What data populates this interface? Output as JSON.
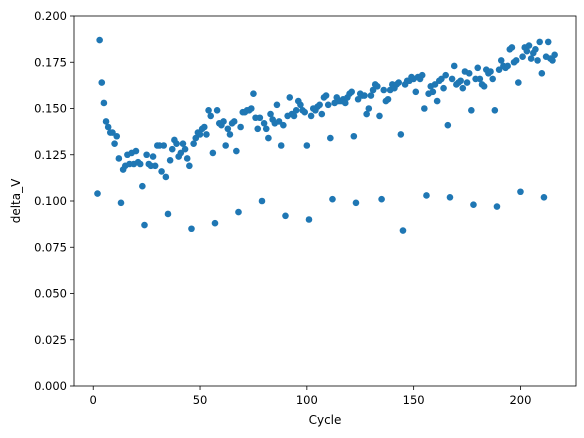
{
  "chart_data": {
    "type": "scatter",
    "xlabel": "Cycle",
    "ylabel": "delta_V",
    "xlim": [
      -9,
      226
    ],
    "ylim": [
      0.0,
      0.2
    ],
    "x_ticks": [
      0,
      50,
      100,
      150,
      200
    ],
    "x_tick_labels": [
      "0",
      "50",
      "100",
      "150",
      "200"
    ],
    "y_ticks": [
      0.0,
      0.025,
      0.05,
      0.075,
      0.1,
      0.125,
      0.15,
      0.175,
      0.2
    ],
    "y_tick_labels": [
      "0.000",
      "0.025",
      "0.050",
      "0.075",
      "0.100",
      "0.125",
      "0.150",
      "0.175",
      "0.200"
    ],
    "grid": false,
    "marker_color": "#1f77b4",
    "points": [
      [
        2,
        0.104
      ],
      [
        3,
        0.187
      ],
      [
        4,
        0.164
      ],
      [
        5,
        0.153
      ],
      [
        6,
        0.143
      ],
      [
        7,
        0.14
      ],
      [
        8,
        0.137
      ],
      [
        9,
        0.137
      ],
      [
        10,
        0.131
      ],
      [
        11,
        0.135
      ],
      [
        12,
        0.123
      ],
      [
        13,
        0.099
      ],
      [
        14,
        0.117
      ],
      [
        15,
        0.119
      ],
      [
        16,
        0.125
      ],
      [
        17,
        0.12
      ],
      [
        18,
        0.126
      ],
      [
        19,
        0.12
      ],
      [
        20,
        0.127
      ],
      [
        21,
        0.121
      ],
      [
        22,
        0.12
      ],
      [
        23,
        0.108
      ],
      [
        24,
        0.087
      ],
      [
        25,
        0.125
      ],
      [
        26,
        0.12
      ],
      [
        27,
        0.119
      ],
      [
        28,
        0.124
      ],
      [
        29,
        0.119
      ],
      [
        30,
        0.13
      ],
      [
        31,
        0.13
      ],
      [
        32,
        0.116
      ],
      [
        33,
        0.13
      ],
      [
        34,
        0.113
      ],
      [
        35,
        0.093
      ],
      [
        36,
        0.122
      ],
      [
        37,
        0.128
      ],
      [
        38,
        0.133
      ],
      [
        39,
        0.131
      ],
      [
        40,
        0.124
      ],
      [
        41,
        0.126
      ],
      [
        42,
        0.131
      ],
      [
        43,
        0.128
      ],
      [
        44,
        0.123
      ],
      [
        45,
        0.119
      ],
      [
        46,
        0.085
      ],
      [
        47,
        0.131
      ],
      [
        48,
        0.134
      ],
      [
        49,
        0.137
      ],
      [
        50,
        0.136
      ],
      [
        51,
        0.139
      ],
      [
        52,
        0.14
      ],
      [
        53,
        0.136
      ],
      [
        54,
        0.149
      ],
      [
        55,
        0.146
      ],
      [
        56,
        0.126
      ],
      [
        57,
        0.088
      ],
      [
        58,
        0.149
      ],
      [
        59,
        0.142
      ],
      [
        60,
        0.141
      ],
      [
        61,
        0.143
      ],
      [
        62,
        0.13
      ],
      [
        63,
        0.139
      ],
      [
        64,
        0.136
      ],
      [
        65,
        0.142
      ],
      [
        66,
        0.143
      ],
      [
        67,
        0.127
      ],
      [
        68,
        0.094
      ],
      [
        69,
        0.14
      ],
      [
        70,
        0.148
      ],
      [
        71,
        0.148
      ],
      [
        72,
        0.149
      ],
      [
        73,
        0.149
      ],
      [
        74,
        0.15
      ],
      [
        75,
        0.158
      ],
      [
        76,
        0.145
      ],
      [
        77,
        0.139
      ],
      [
        78,
        0.145
      ],
      [
        79,
        0.1
      ],
      [
        80,
        0.142
      ],
      [
        81,
        0.139
      ],
      [
        82,
        0.134
      ],
      [
        83,
        0.147
      ],
      [
        84,
        0.144
      ],
      [
        85,
        0.142
      ],
      [
        86,
        0.152
      ],
      [
        87,
        0.143
      ],
      [
        88,
        0.13
      ],
      [
        89,
        0.141
      ],
      [
        90,
        0.092
      ],
      [
        91,
        0.146
      ],
      [
        92,
        0.156
      ],
      [
        93,
        0.147
      ],
      [
        94,
        0.146
      ],
      [
        95,
        0.149
      ],
      [
        96,
        0.154
      ],
      [
        97,
        0.152
      ],
      [
        98,
        0.149
      ],
      [
        99,
        0.148
      ],
      [
        100,
        0.13
      ],
      [
        101,
        0.09
      ],
      [
        102,
        0.146
      ],
      [
        103,
        0.15
      ],
      [
        104,
        0.149
      ],
      [
        105,
        0.151
      ],
      [
        106,
        0.152
      ],
      [
        107,
        0.147
      ],
      [
        108,
        0.156
      ],
      [
        109,
        0.157
      ],
      [
        110,
        0.152
      ],
      [
        111,
        0.134
      ],
      [
        112,
        0.101
      ],
      [
        113,
        0.153
      ],
      [
        114,
        0.156
      ],
      [
        115,
        0.154
      ],
      [
        116,
        0.154
      ],
      [
        117,
        0.155
      ],
      [
        118,
        0.153
      ],
      [
        119,
        0.156
      ],
      [
        120,
        0.158
      ],
      [
        121,
        0.159
      ],
      [
        122,
        0.135
      ],
      [
        123,
        0.099
      ],
      [
        124,
        0.155
      ],
      [
        125,
        0.158
      ],
      [
        126,
        0.157
      ],
      [
        127,
        0.157
      ],
      [
        128,
        0.147
      ],
      [
        129,
        0.15
      ],
      [
        130,
        0.157
      ],
      [
        131,
        0.16
      ],
      [
        132,
        0.163
      ],
      [
        133,
        0.162
      ],
      [
        134,
        0.146
      ],
      [
        135,
        0.101
      ],
      [
        136,
        0.16
      ],
      [
        137,
        0.154
      ],
      [
        138,
        0.155
      ],
      [
        139,
        0.16
      ],
      [
        140,
        0.163
      ],
      [
        141,
        0.161
      ],
      [
        142,
        0.163
      ],
      [
        143,
        0.164
      ],
      [
        144,
        0.136
      ],
      [
        145,
        0.084
      ],
      [
        146,
        0.163
      ],
      [
        147,
        0.165
      ],
      [
        148,
        0.165
      ],
      [
        149,
        0.167
      ],
      [
        150,
        0.166
      ],
      [
        151,
        0.159
      ],
      [
        152,
        0.167
      ],
      [
        153,
        0.166
      ],
      [
        154,
        0.168
      ],
      [
        155,
        0.15
      ],
      [
        156,
        0.103
      ],
      [
        157,
        0.158
      ],
      [
        158,
        0.162
      ],
      [
        159,
        0.159
      ],
      [
        160,
        0.163
      ],
      [
        161,
        0.154
      ],
      [
        162,
        0.165
      ],
      [
        163,
        0.166
      ],
      [
        164,
        0.161
      ],
      [
        165,
        0.168
      ],
      [
        166,
        0.141
      ],
      [
        167,
        0.102
      ],
      [
        168,
        0.166
      ],
      [
        169,
        0.173
      ],
      [
        170,
        0.163
      ],
      [
        171,
        0.164
      ],
      [
        172,
        0.165
      ],
      [
        173,
        0.161
      ],
      [
        174,
        0.17
      ],
      [
        175,
        0.164
      ],
      [
        176,
        0.169
      ],
      [
        177,
        0.149
      ],
      [
        178,
        0.098
      ],
      [
        179,
        0.166
      ],
      [
        180,
        0.172
      ],
      [
        181,
        0.166
      ],
      [
        182,
        0.163
      ],
      [
        183,
        0.162
      ],
      [
        184,
        0.171
      ],
      [
        185,
        0.169
      ],
      [
        186,
        0.17
      ],
      [
        187,
        0.166
      ],
      [
        188,
        0.149
      ],
      [
        189,
        0.097
      ],
      [
        190,
        0.171
      ],
      [
        191,
        0.176
      ],
      [
        192,
        0.173
      ],
      [
        193,
        0.172
      ],
      [
        194,
        0.173
      ],
      [
        195,
        0.182
      ],
      [
        196,
        0.183
      ],
      [
        197,
        0.175
      ],
      [
        198,
        0.176
      ],
      [
        199,
        0.164
      ],
      [
        200,
        0.105
      ],
      [
        201,
        0.178
      ],
      [
        202,
        0.183
      ],
      [
        203,
        0.181
      ],
      [
        204,
        0.184
      ],
      [
        205,
        0.177
      ],
      [
        206,
        0.18
      ],
      [
        207,
        0.182
      ],
      [
        208,
        0.176
      ],
      [
        209,
        0.186
      ],
      [
        210,
        0.169
      ],
      [
        211,
        0.102
      ],
      [
        212,
        0.178
      ],
      [
        213,
        0.186
      ],
      [
        214,
        0.177
      ],
      [
        215,
        0.176
      ],
      [
        216,
        0.179
      ]
    ]
  }
}
